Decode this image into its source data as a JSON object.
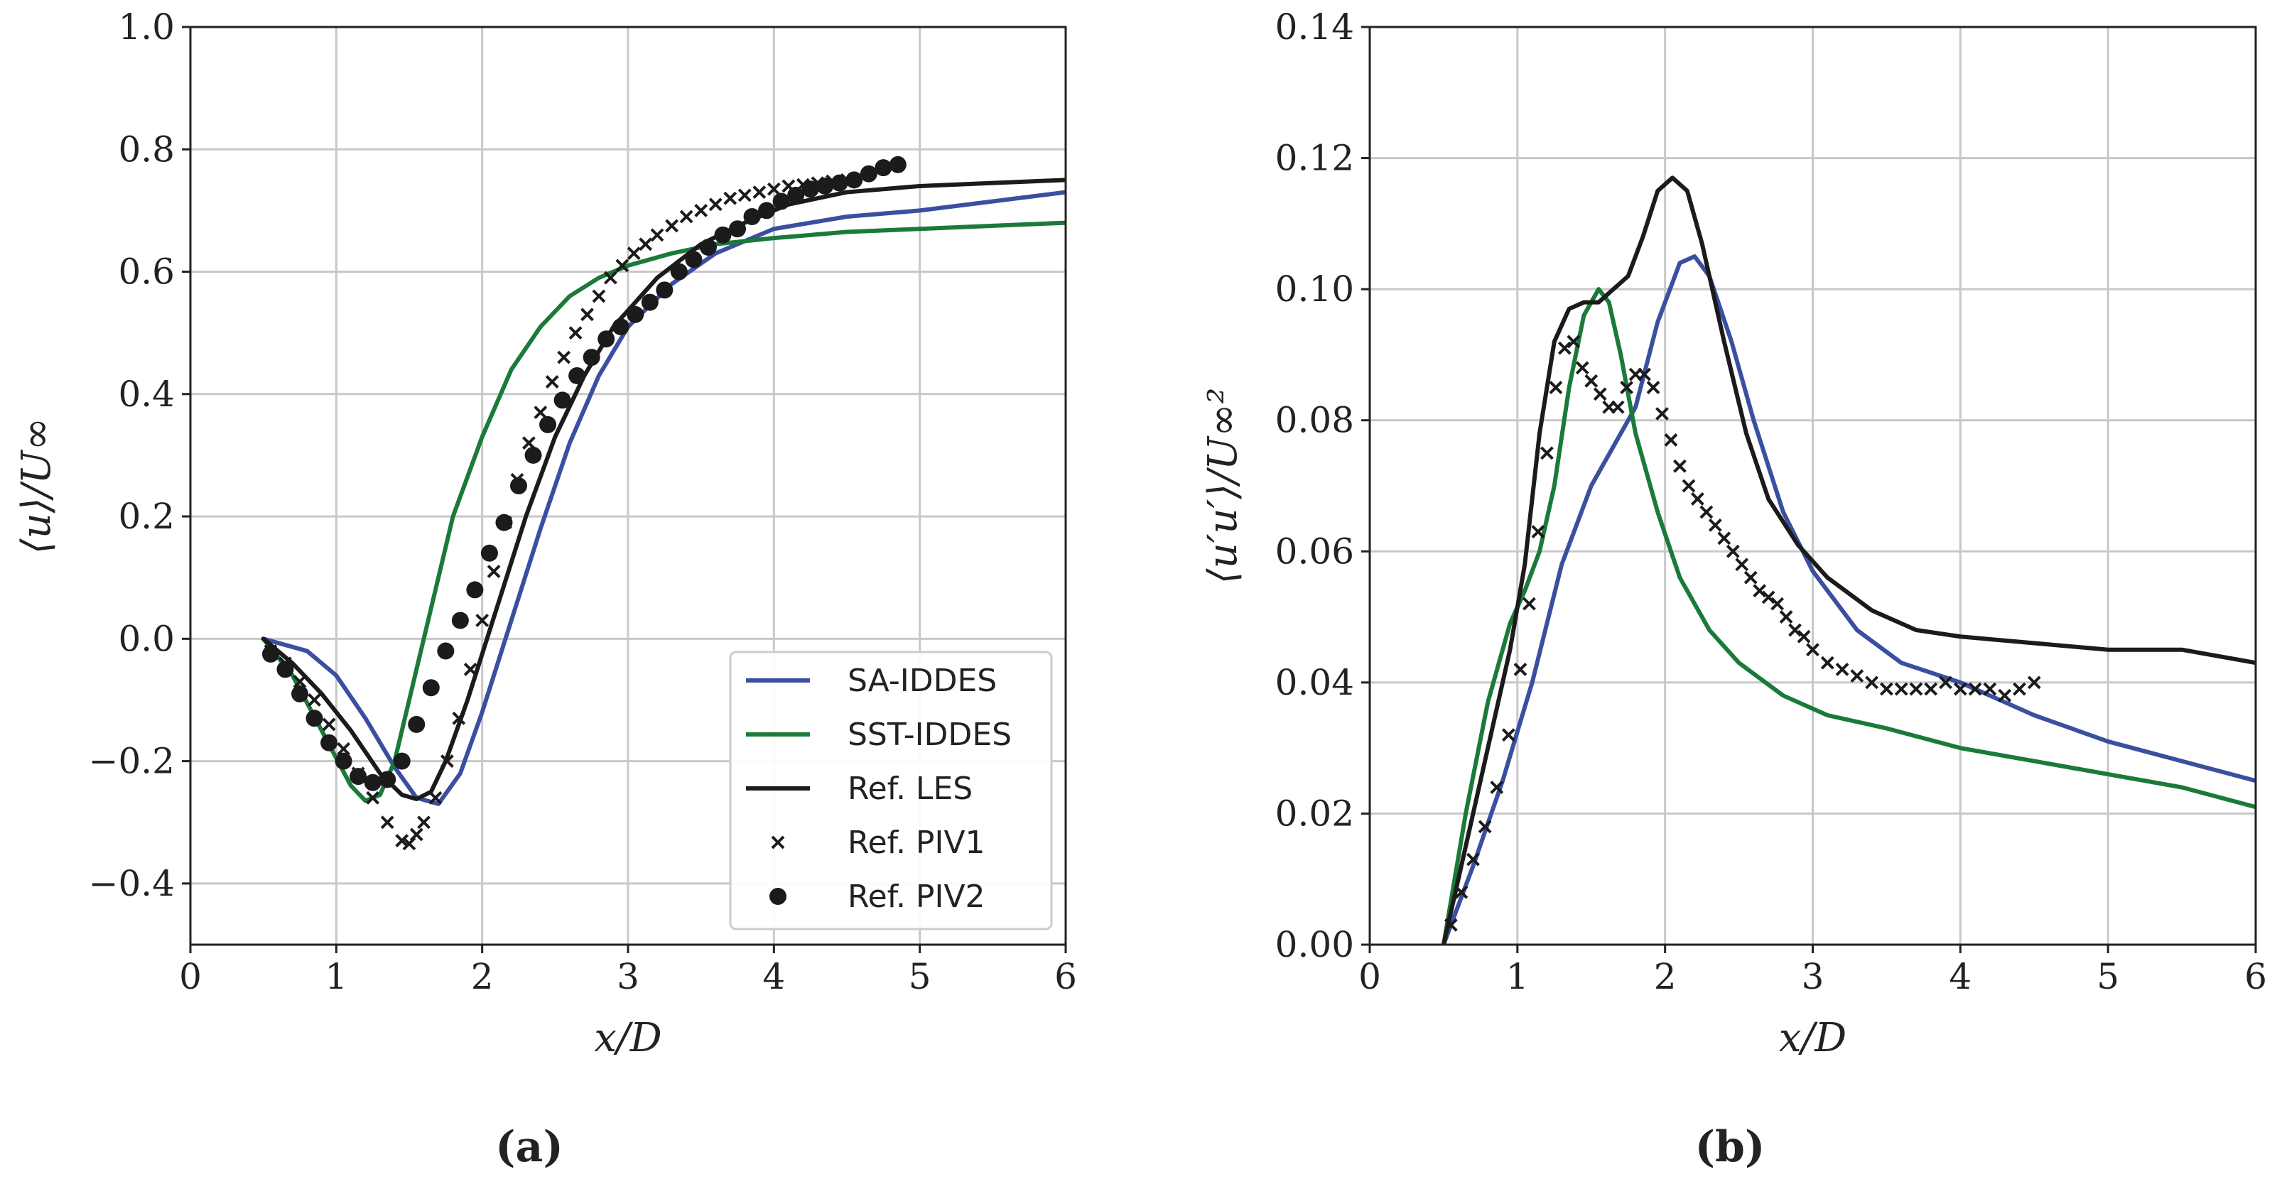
{
  "colors": {
    "sa": "#3a4fa0",
    "sst": "#1a7a3a",
    "les": "#1b1b1b",
    "piv": "#1b1b1b",
    "grid": "#c8c8c8",
    "axis": "#222222"
  },
  "chart_data": [
    {
      "type": "line",
      "panel_label": "(a)",
      "xlabel": "x/D",
      "ylabel": "⟨u⟩/U∞",
      "xlim": [
        0,
        6
      ],
      "ylim": [
        -0.5,
        1.0
      ],
      "xticks": [
        0,
        1,
        2,
        3,
        4,
        5,
        6
      ],
      "xtick_labels": [
        "0",
        "1",
        "2",
        "3",
        "4",
        "5",
        "6"
      ],
      "yticks": [
        -0.4,
        -0.2,
        0.0,
        0.2,
        0.4,
        0.6,
        0.8,
        1.0
      ],
      "ytick_labels": [
        "−0.4",
        "−0.2",
        "0.0",
        "0.2",
        "0.4",
        "0.6",
        "0.8",
        "1.0"
      ],
      "grid": true,
      "legend": {
        "position": "lower-right",
        "entries": [
          {
            "label": "SA-IDDES",
            "key": "sa",
            "style": "line"
          },
          {
            "label": "SST-IDDES",
            "key": "sst",
            "style": "line"
          },
          {
            "label": "Ref. LES",
            "key": "les",
            "style": "line"
          },
          {
            "label": "Ref. PIV1",
            "key": "piv",
            "style": "x"
          },
          {
            "label": "Ref. PIV2",
            "key": "piv",
            "style": "dot"
          }
        ]
      },
      "series": [
        {
          "name": "SA-IDDES",
          "key": "sa",
          "style": "line",
          "x": [
            0.5,
            0.8,
            1.0,
            1.2,
            1.4,
            1.55,
            1.7,
            1.85,
            2.0,
            2.2,
            2.4,
            2.6,
            2.8,
            3.0,
            3.3,
            3.6,
            4.0,
            4.5,
            5.0,
            5.5,
            6.0
          ],
          "y": [
            0.0,
            -0.02,
            -0.06,
            -0.13,
            -0.21,
            -0.26,
            -0.27,
            -0.22,
            -0.12,
            0.03,
            0.18,
            0.32,
            0.43,
            0.51,
            0.58,
            0.63,
            0.67,
            0.69,
            0.7,
            0.715,
            0.73
          ]
        },
        {
          "name": "SST-IDDES",
          "key": "sst",
          "style": "line",
          "x": [
            0.5,
            0.7,
            0.9,
            1.1,
            1.2,
            1.3,
            1.4,
            1.5,
            1.6,
            1.7,
            1.8,
            2.0,
            2.2,
            2.4,
            2.6,
            2.8,
            3.0,
            3.3,
            3.6,
            4.0,
            4.5,
            5.0,
            5.5,
            6.0
          ],
          "y": [
            0.0,
            -0.06,
            -0.15,
            -0.24,
            -0.265,
            -0.255,
            -0.2,
            -0.1,
            0.0,
            0.1,
            0.2,
            0.33,
            0.44,
            0.51,
            0.56,
            0.59,
            0.61,
            0.63,
            0.645,
            0.655,
            0.665,
            0.67,
            0.675,
            0.68
          ]
        },
        {
          "name": "Ref. LES",
          "key": "les",
          "style": "line",
          "x": [
            0.5,
            0.7,
            0.9,
            1.1,
            1.3,
            1.45,
            1.55,
            1.65,
            1.75,
            1.9,
            2.1,
            2.3,
            2.5,
            2.7,
            2.9,
            3.2,
            3.5,
            3.8,
            4.1,
            4.5,
            5.0,
            5.5,
            6.0
          ],
          "y": [
            0.0,
            -0.04,
            -0.09,
            -0.15,
            -0.22,
            -0.255,
            -0.262,
            -0.25,
            -0.2,
            -0.1,
            0.05,
            0.2,
            0.33,
            0.43,
            0.51,
            0.59,
            0.645,
            0.68,
            0.71,
            0.73,
            0.74,
            0.745,
            0.75
          ]
        },
        {
          "name": "Ref. PIV1",
          "key": "piv",
          "style": "x",
          "x": [
            0.55,
            0.65,
            0.75,
            0.85,
            0.95,
            1.05,
            1.15,
            1.25,
            1.35,
            1.45,
            1.5,
            1.55,
            1.6,
            1.68,
            1.76,
            1.84,
            1.92,
            2.0,
            2.08,
            2.16,
            2.24,
            2.32,
            2.4,
            2.48,
            2.56,
            2.64,
            2.72,
            2.8,
            2.88,
            2.96,
            3.04,
            3.12,
            3.2,
            3.3,
            3.4,
            3.5,
            3.6,
            3.7,
            3.8,
            3.9,
            4.0,
            4.1,
            4.2,
            4.3,
            4.4,
            4.5
          ],
          "y": [
            -0.02,
            -0.04,
            -0.07,
            -0.1,
            -0.14,
            -0.18,
            -0.22,
            -0.26,
            -0.3,
            -0.33,
            -0.335,
            -0.32,
            -0.3,
            -0.26,
            -0.2,
            -0.13,
            -0.05,
            0.03,
            0.11,
            0.19,
            0.26,
            0.32,
            0.37,
            0.42,
            0.46,
            0.5,
            0.53,
            0.56,
            0.59,
            0.61,
            0.63,
            0.645,
            0.66,
            0.675,
            0.69,
            0.7,
            0.71,
            0.72,
            0.725,
            0.73,
            0.735,
            0.74,
            0.742,
            0.745,
            0.748,
            0.75
          ]
        },
        {
          "name": "Ref. PIV2",
          "key": "piv",
          "style": "dot",
          "x": [
            0.55,
            0.65,
            0.75,
            0.85,
            0.95,
            1.05,
            1.15,
            1.25,
            1.35,
            1.45,
            1.55,
            1.65,
            1.75,
            1.85,
            1.95,
            2.05,
            2.15,
            2.25,
            2.35,
            2.45,
            2.55,
            2.65,
            2.75,
            2.85,
            2.95,
            3.05,
            3.15,
            3.25,
            3.35,
            3.45,
            3.55,
            3.65,
            3.75,
            3.85,
            3.95,
            4.05,
            4.15,
            4.25,
            4.35,
            4.45,
            4.55,
            4.65,
            4.75,
            4.85
          ],
          "y": [
            -0.025,
            -0.05,
            -0.09,
            -0.13,
            -0.17,
            -0.2,
            -0.225,
            -0.235,
            -0.23,
            -0.2,
            -0.14,
            -0.08,
            -0.02,
            0.03,
            0.08,
            0.14,
            0.19,
            0.25,
            0.3,
            0.35,
            0.39,
            0.43,
            0.46,
            0.49,
            0.51,
            0.53,
            0.55,
            0.57,
            0.6,
            0.62,
            0.64,
            0.66,
            0.67,
            0.69,
            0.7,
            0.715,
            0.725,
            0.735,
            0.74,
            0.745,
            0.75,
            0.76,
            0.77,
            0.775
          ]
        }
      ]
    },
    {
      "type": "line",
      "panel_label": "(b)",
      "xlabel": "x/D",
      "ylabel": "⟨u′u′⟩/U∞²",
      "xlim": [
        0,
        6
      ],
      "ylim": [
        0.0,
        0.14
      ],
      "xticks": [
        0,
        1,
        2,
        3,
        4,
        5,
        6
      ],
      "xtick_labels": [
        "0",
        "1",
        "2",
        "3",
        "4",
        "5",
        "6"
      ],
      "yticks": [
        0.0,
        0.02,
        0.04,
        0.06,
        0.08,
        0.1,
        0.12,
        0.14
      ],
      "ytick_labels": [
        "0.00",
        "0.02",
        "0.04",
        "0.06",
        "0.08",
        "0.10",
        "0.12",
        "0.14"
      ],
      "grid": true,
      "series": [
        {
          "name": "SA-IDDES",
          "key": "sa",
          "style": "line",
          "x": [
            0.5,
            0.7,
            0.9,
            1.1,
            1.3,
            1.5,
            1.65,
            1.8,
            1.95,
            2.1,
            2.2,
            2.3,
            2.45,
            2.6,
            2.8,
            3.0,
            3.3,
            3.6,
            4.0,
            4.5,
            5.0,
            5.5,
            6.0
          ],
          "y": [
            0.0,
            0.012,
            0.025,
            0.04,
            0.058,
            0.07,
            0.076,
            0.082,
            0.095,
            0.104,
            0.105,
            0.102,
            0.092,
            0.08,
            0.066,
            0.057,
            0.048,
            0.043,
            0.04,
            0.035,
            0.031,
            0.028,
            0.025
          ]
        },
        {
          "name": "SST-IDDES",
          "key": "sst",
          "style": "line",
          "x": [
            0.5,
            0.65,
            0.8,
            0.95,
            1.05,
            1.15,
            1.25,
            1.35,
            1.45,
            1.55,
            1.62,
            1.7,
            1.8,
            1.95,
            2.1,
            2.3,
            2.5,
            2.8,
            3.1,
            3.5,
            4.0,
            4.5,
            5.0,
            5.5,
            6.0
          ],
          "y": [
            0.0,
            0.02,
            0.037,
            0.049,
            0.054,
            0.06,
            0.07,
            0.085,
            0.096,
            0.1,
            0.098,
            0.09,
            0.078,
            0.066,
            0.056,
            0.048,
            0.043,
            0.038,
            0.035,
            0.033,
            0.03,
            0.028,
            0.026,
            0.024,
            0.021
          ]
        },
        {
          "name": "Ref. LES",
          "key": "les",
          "style": "line",
          "x": [
            0.5,
            0.65,
            0.8,
            0.95,
            1.05,
            1.15,
            1.25,
            1.35,
            1.45,
            1.55,
            1.65,
            1.75,
            1.85,
            1.95,
            2.05,
            2.15,
            2.25,
            2.4,
            2.55,
            2.7,
            2.9,
            3.1,
            3.4,
            3.7,
            4.0,
            4.5,
            5.0,
            5.5,
            6.0
          ],
          "y": [
            0.0,
            0.015,
            0.03,
            0.045,
            0.058,
            0.078,
            0.092,
            0.097,
            0.098,
            0.098,
            0.1,
            0.102,
            0.108,
            0.115,
            0.117,
            0.115,
            0.107,
            0.092,
            0.078,
            0.068,
            0.061,
            0.056,
            0.051,
            0.048,
            0.047,
            0.046,
            0.045,
            0.045,
            0.043
          ]
        },
        {
          "name": "Ref. PIV1",
          "key": "piv",
          "style": "x",
          "x": [
            0.55,
            0.62,
            0.7,
            0.78,
            0.86,
            0.94,
            1.02,
            1.08,
            1.14,
            1.2,
            1.26,
            1.32,
            1.38,
            1.44,
            1.5,
            1.56,
            1.62,
            1.68,
            1.74,
            1.8,
            1.86,
            1.92,
            1.98,
            2.04,
            2.1,
            2.16,
            2.22,
            2.28,
            2.34,
            2.4,
            2.46,
            2.52,
            2.58,
            2.64,
            2.7,
            2.76,
            2.82,
            2.88,
            2.94,
            3.0,
            3.1,
            3.2,
            3.3,
            3.4,
            3.5,
            3.6,
            3.7,
            3.8,
            3.9,
            4.0,
            4.1,
            4.2,
            4.3,
            4.4,
            4.5
          ],
          "y": [
            0.003,
            0.008,
            0.013,
            0.018,
            0.024,
            0.032,
            0.042,
            0.052,
            0.063,
            0.075,
            0.085,
            0.091,
            0.092,
            0.088,
            0.086,
            0.084,
            0.082,
            0.082,
            0.085,
            0.087,
            0.087,
            0.085,
            0.081,
            0.077,
            0.073,
            0.07,
            0.068,
            0.066,
            0.064,
            0.062,
            0.06,
            0.058,
            0.056,
            0.054,
            0.053,
            0.052,
            0.05,
            0.048,
            0.047,
            0.045,
            0.043,
            0.042,
            0.041,
            0.04,
            0.039,
            0.039,
            0.039,
            0.039,
            0.04,
            0.039,
            0.039,
            0.039,
            0.038,
            0.039,
            0.04
          ]
        }
      ]
    }
  ]
}
